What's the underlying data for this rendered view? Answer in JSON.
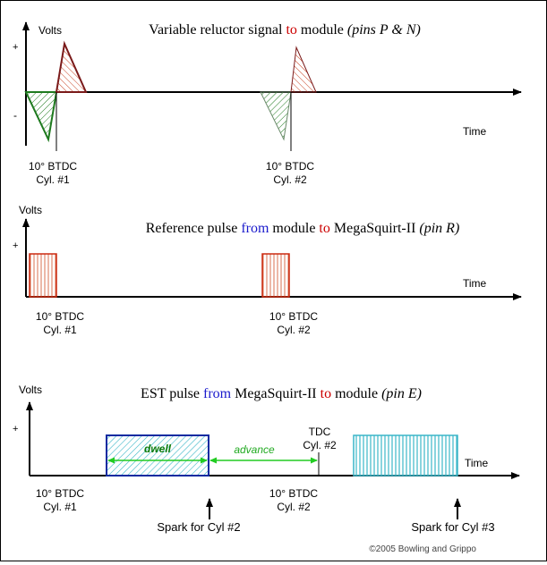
{
  "panel1": {
    "title_parts": [
      "Variable reluctor signal ",
      "to",
      " module ",
      "(pins P & N)"
    ],
    "ylabel": "Volts",
    "plus": "+",
    "minus": "-",
    "xlabel": "Time",
    "marker1": [
      "10° BTDC",
      "Cyl. #1"
    ],
    "marker2": [
      "10° BTDC",
      "Cyl. #2"
    ]
  },
  "panel2": {
    "title_parts": [
      "Reference pulse ",
      "from",
      " module ",
      "to",
      " MegaSquirt-II ",
      "(pin R)"
    ],
    "ylabel": "Volts",
    "plus": "+",
    "xlabel": "Time",
    "marker1": [
      "10° BTDC",
      "Cyl. #1"
    ],
    "marker2": [
      "10° BTDC",
      "Cyl. #2"
    ]
  },
  "panel3": {
    "title_parts": [
      "EST pulse ",
      "from",
      " MegaSquirt-II ",
      "to",
      " module ",
      "(pin E)"
    ],
    "ylabel": "Volts",
    "plus": "+",
    "xlabel": "Time",
    "dwell": "dwell",
    "advance": "advance",
    "tdc": [
      "TDC",
      "Cyl. #2"
    ],
    "marker1": [
      "10° BTDC",
      "Cyl. #1"
    ],
    "marker2": [
      "10° BTDC",
      "Cyl. #2"
    ],
    "spark1": "Spark for Cyl #2",
    "spark2": "Spark for Cyl #3"
  },
  "copyright": "©2005 Bowling and Grippo",
  "colors": {
    "axis": "#000000",
    "red_keyword": "#cc0000",
    "blue_keyword": "#1a1acc",
    "negative_lobe": "#1e7a1e",
    "positive_lobe": "#7a1a1a",
    "ref_pulse": "#cc2a10",
    "est_pulse": "#0a2aa0",
    "est_fill": "#3ab6c8",
    "annotation_green": "#22cc22"
  }
}
